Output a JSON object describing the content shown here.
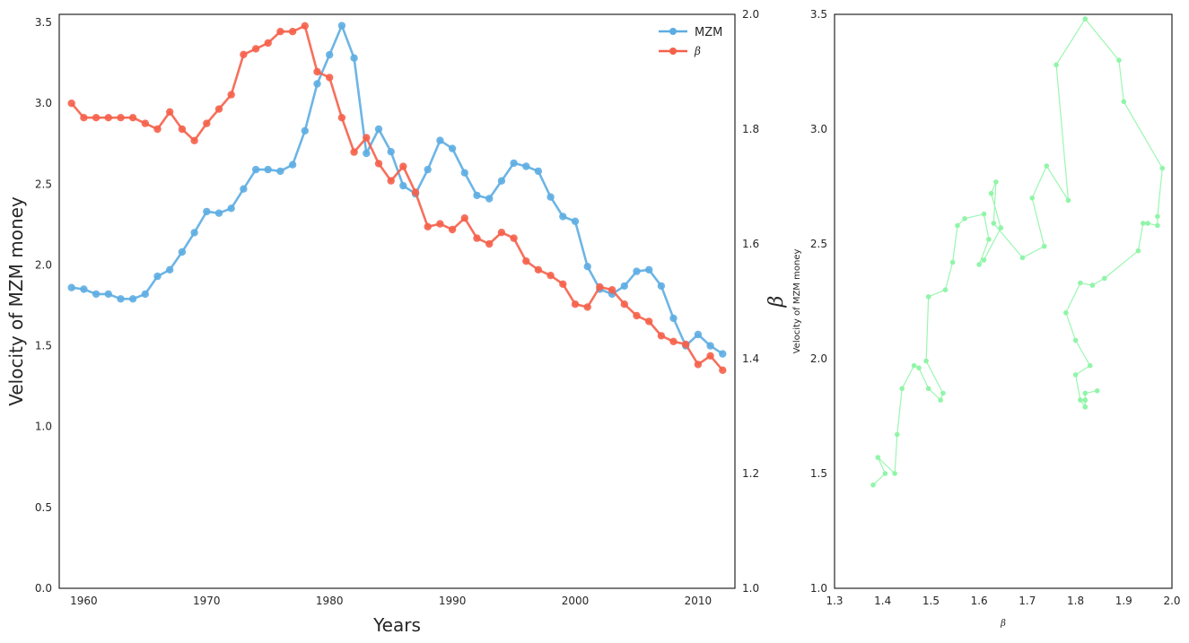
{
  "chart_data": [
    {
      "type": "line",
      "title": "",
      "xlabel": "Years",
      "ylabel": "Velocity of MZM money",
      "y2label": "β",
      "xlim": [
        1958,
        2013
      ],
      "ylim": [
        0,
        3.55
      ],
      "y2lim": [
        1.0,
        2.0
      ],
      "x_ticks": [
        1960,
        1970,
        1980,
        1990,
        2000,
        2010
      ],
      "y_ticks": [
        0.0,
        0.5,
        1.0,
        1.5,
        2.0,
        2.5,
        3.0,
        3.5
      ],
      "y2_ticks": [
        1.0,
        1.2,
        1.4,
        1.6,
        1.8,
        2.0
      ],
      "grid": false,
      "legend": "top-right",
      "x": [
        1959,
        1960,
        1961,
        1962,
        1963,
        1964,
        1965,
        1966,
        1967,
        1968,
        1969,
        1970,
        1971,
        1972,
        1973,
        1974,
        1975,
        1976,
        1977,
        1978,
        1979,
        1980,
        1981,
        1982,
        1983,
        1984,
        1985,
        1986,
        1987,
        1988,
        1989,
        1990,
        1991,
        1992,
        1993,
        1994,
        1995,
        1996,
        1997,
        1998,
        1999,
        2000,
        2001,
        2002,
        2003,
        2004,
        2005,
        2006,
        2007,
        2008,
        2009,
        2010,
        2011,
        2012
      ],
      "series": [
        {
          "name": "MZM",
          "axis": "left",
          "color": "#5dade2",
          "values": [
            1.86,
            1.85,
            1.82,
            1.82,
            1.79,
            1.79,
            1.82,
            1.93,
            1.97,
            2.08,
            2.2,
            2.33,
            2.32,
            2.35,
            2.47,
            2.59,
            2.59,
            2.58,
            2.62,
            2.83,
            3.12,
            3.3,
            3.48,
            3.28,
            2.69,
            2.84,
            2.7,
            2.49,
            2.44,
            2.59,
            2.77,
            2.72,
            2.57,
            2.43,
            2.41,
            2.52,
            2.63,
            2.61,
            2.58,
            2.42,
            2.3,
            2.27,
            1.99,
            1.85,
            1.82,
            1.87,
            1.96,
            1.97,
            1.87,
            1.67,
            1.5,
            1.57,
            1.5,
            1.45
          ]
        },
        {
          "name": "β",
          "axis": "right",
          "color": "#f5604a",
          "values": [
            1.845,
            1.82,
            1.82,
            1.82,
            1.82,
            1.82,
            1.81,
            1.8,
            1.83,
            1.8,
            1.78,
            1.81,
            1.835,
            1.86,
            1.93,
            1.94,
            1.95,
            1.97,
            1.97,
            1.98,
            1.9,
            1.89,
            1.82,
            1.76,
            1.785,
            1.74,
            1.71,
            1.735,
            1.69,
            1.63,
            1.635,
            1.625,
            1.645,
            1.61,
            1.6,
            1.62,
            1.61,
            1.57,
            1.555,
            1.545,
            1.53,
            1.495,
            1.49,
            1.525,
            1.52,
            1.495,
            1.475,
            1.465,
            1.44,
            1.43,
            1.425,
            1.39,
            1.405,
            1.38
          ]
        }
      ]
    },
    {
      "type": "scatter",
      "title": "",
      "xlabel": "β",
      "ylabel": "Velocity of MZM money",
      "xlim": [
        1.3,
        2.0
      ],
      "ylim": [
        1.0,
        3.5
      ],
      "x_ticks": [
        1.3,
        1.4,
        1.5,
        1.6,
        1.7,
        1.8,
        1.9,
        2.0
      ],
      "y_ticks": [
        1.0,
        1.5,
        2.0,
        2.5,
        3.0,
        3.5
      ],
      "grid": false,
      "color": "#90f5a8",
      "connected": true,
      "note_pairs_from": "same years as first chart: x = β, y = MZM"
    }
  ]
}
